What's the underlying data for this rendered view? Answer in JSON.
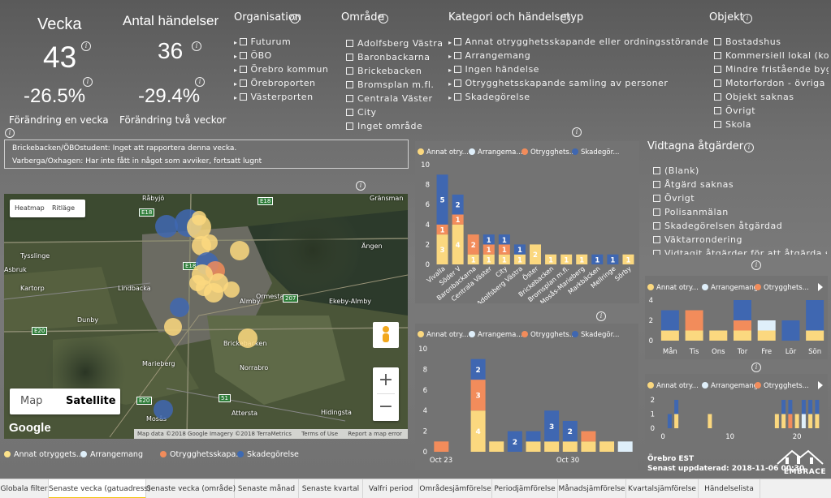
{
  "kpis": {
    "week_title": "Vecka",
    "week_value": "43",
    "events_title": "Antal händelser",
    "events_value": "36",
    "change_one": "-26.5%",
    "change_one_label": "Förändring en vecka",
    "change_two": "-29.4%",
    "change_two_label": "Förändring två veckor"
  },
  "slicers": {
    "org": {
      "title": "Organisation",
      "items": [
        "Futurum",
        "ÖBO",
        "Örebro kommun",
        "Örebroporten",
        "Västerporten"
      ]
    },
    "area": {
      "title": "Område",
      "items": [
        "Adolfsberg Västra",
        "Baronbackarna",
        "Brickebacken",
        "Bromsplan m.fl.",
        "Centrala Väster",
        "City",
        "Inget område"
      ]
    },
    "category": {
      "title": "Kategori och händelsetyp",
      "items": [
        "Annat otrygghetsskapande eller ordningsstörande",
        "Arrangemang",
        "Ingen händelse",
        "Otrygghetsskapande samling av personer",
        "Skadegörelse"
      ]
    },
    "object": {
      "title": "Objekt",
      "items": [
        "Bostadshus",
        "Kommersiell lokal (konto",
        "Mindre fristående byggr",
        "Motorfordon - övriga",
        "Objekt saknas",
        "Övrigt",
        "Skola"
      ]
    },
    "actions": {
      "title": "Vidtagna åtgärder",
      "items": [
        "(Blank)",
        "Åtgärd saknas",
        "Övrigt",
        "Polisanmälan",
        "Skadegörelsen åtgärdad",
        "Väktarrondering",
        "Vidtagit åtgärder för att åtgärda skadi"
      ]
    }
  },
  "notes": [
    "Brickebacken/ÖBOstudent: Inget att rapportera denna vecka.",
    "Varberga/Oxhagen: Har inte fått in något som avviker, fortsatt lugnt"
  ],
  "map": {
    "heatmap": "Heatmap",
    "ritlage": "Ritläge",
    "map_btn": "Map",
    "satellite_btn": "Satellite",
    "zoom_in": "+",
    "zoom_out": "−",
    "google": "Google",
    "footer": "Map data ©2018 Google Imagery ©2018 TerraMetrics",
    "terms": "Terms of Use",
    "report": "Report a map error",
    "places": [
      "Tysslinge",
      "Lindbacka",
      "Kartorp",
      "Dunby",
      "Marieberg",
      "Norrabro",
      "Brickebacken",
      "Ekeby-Almby",
      "Ormesta",
      "Almby",
      "Mosås",
      "Attersta",
      "Hidingsta",
      "Gränsman",
      "Råbyjö",
      "Asbruk",
      "Ängen"
    ],
    "roads": [
      "E18",
      "E20",
      "E18",
      "207",
      "51",
      "E20",
      "E18"
    ]
  },
  "legend": {
    "items": [
      "Annat otryggets...",
      "Arrangemang",
      "Otrygghetsskapa...",
      "Skadegörelse"
    ],
    "colors": [
      "#fde38b",
      "#dfeffa",
      "#f28c5b",
      "#3d6ab3"
    ]
  },
  "colors": {
    "annat": "#fbd87f",
    "arrangemang": "#dfeffa",
    "otrygghet": "#f28c5b",
    "skadegorelse": "#3f67b1"
  },
  "chart_legend": [
    "Annat otry...",
    "Arrangema...",
    "Otrygghets...",
    "Skadegör..."
  ],
  "chart_data": [
    {
      "type": "bar",
      "stacked": true,
      "name": "area_chart",
      "categories": [
        "Vivalla",
        "Söder V",
        "Baronbackarna",
        "Centrala Väster",
        "City",
        "Adolfsberg Västra",
        "Öster",
        "Brickebacken",
        "Bromsplan m.fl.",
        "Mosås-Marieberg",
        "Markbäcken",
        "Mellringe",
        "Sörbyängen"
      ],
      "ylim": [
        0,
        10
      ],
      "yticks": [
        0,
        2,
        4,
        6,
        8,
        10
      ],
      "series": [
        {
          "name": "Annat otry...",
          "values": [
            3,
            4,
            1,
            1,
            1,
            1,
            2,
            1,
            1,
            1,
            0,
            0,
            1
          ]
        },
        {
          "name": "Arrangema...",
          "values": [
            0,
            0,
            0,
            0,
            0,
            0,
            0,
            0,
            0,
            0,
            0,
            0,
            0
          ]
        },
        {
          "name": "Otrygghets...",
          "values": [
            1,
            1,
            2,
            1,
            1,
            0,
            0,
            0,
            0,
            0,
            0,
            0,
            0
          ]
        },
        {
          "name": "Skadegör...",
          "values": [
            5,
            2,
            0,
            1,
            1,
            1,
            0,
            0,
            0,
            0,
            1,
            1,
            0
          ]
        }
      ],
      "segment_labels": [
        [
          "3",
          "1",
          "5"
        ],
        [
          "4",
          "1",
          "2"
        ],
        [
          "1",
          "2",
          ""
        ],
        [
          "1",
          "1",
          "1"
        ],
        [
          "1",
          "1",
          "1"
        ],
        [
          "1",
          "",
          "1"
        ],
        [
          "2",
          "",
          ""
        ],
        [
          "1",
          "",
          ""
        ],
        [
          "1",
          "",
          ""
        ],
        [
          "1",
          "",
          ""
        ],
        [
          "",
          "",
          "1"
        ],
        [
          "",
          "",
          "1"
        ],
        [
          "1",
          "",
          ""
        ]
      ],
      "xlabels": [
        "Vivalla",
        "Söder V",
        "Baronbackarna",
        "Centrala Väster",
        "City",
        "Adolfsberg Västra",
        "Öster",
        "Brickebacken",
        "Bromsplan m.fl.",
        "Mosås-Marieberg",
        "Markbäcken",
        "Mellringe",
        "Sörby"
      ]
    },
    {
      "type": "bar",
      "stacked": true,
      "name": "weekday_chart",
      "categories": [
        "Mån",
        "Tis",
        "Ons",
        "Tor",
        "Fre",
        "Lör",
        "Sön"
      ],
      "ylim": [
        0,
        4
      ],
      "yticks": [
        0,
        2,
        4
      ],
      "series": [
        {
          "name": "Annat otry...",
          "values": [
            1,
            1,
            1,
            1,
            1,
            0,
            1
          ]
        },
        {
          "name": "Arrangemang",
          "values": [
            0,
            0,
            0,
            0,
            1,
            0,
            0
          ]
        },
        {
          "name": "Otrygghets...",
          "values": [
            0,
            2,
            0,
            1,
            0,
            0,
            0
          ]
        },
        {
          "name": "Skadegörelse",
          "values": [
            2,
            0,
            0,
            2,
            0,
            2,
            3
          ]
        }
      ]
    },
    {
      "type": "bar",
      "stacked": true,
      "name": "daily_chart",
      "categories": [
        "Oct 22",
        "Oct 23",
        "Oct 24",
        "Oct 25",
        "Oct 26",
        "Oct 27",
        "Oct 28",
        "Oct 29",
        "Oct 30",
        "Oct 31",
        "Nov 1"
      ],
      "xtick_labels": [
        "Oct 23",
        "Oct 30"
      ],
      "ylim": [
        0,
        10
      ],
      "yticks": [
        0,
        2,
        4,
        6,
        8,
        10
      ],
      "series": [
        {
          "name": "Annat otry...",
          "values": [
            0,
            0,
            4,
            1,
            0,
            1,
            1,
            1,
            1,
            1,
            0
          ]
        },
        {
          "name": "Arrangema...",
          "values": [
            0,
            0,
            0,
            0,
            0,
            0,
            0,
            0,
            0,
            0,
            1
          ]
        },
        {
          "name": "Otrygghets...",
          "values": [
            1,
            0,
            3,
            0,
            0,
            0,
            0,
            0,
            1,
            0,
            0
          ]
        },
        {
          "name": "Skadegör...",
          "values": [
            0,
            0,
            2,
            0,
            2,
            1,
            3,
            2,
            0,
            0,
            0
          ]
        }
      ],
      "segment_labels": [
        [
          "",
          "",
          ""
        ],
        [
          "",
          "",
          ""
        ],
        [
          "4",
          "3",
          "2"
        ],
        [
          "",
          "",
          ""
        ],
        [
          "",
          "",
          "2"
        ],
        [
          "",
          "",
          ""
        ],
        [
          "",
          "",
          "3"
        ],
        [
          "",
          "",
          "2"
        ],
        [
          "",
          "",
          ""
        ],
        [
          "",
          "",
          ""
        ],
        [
          "",
          "",
          ""
        ]
      ]
    },
    {
      "type": "bar",
      "stacked": true,
      "name": "hour_chart",
      "ylim": [
        0,
        2
      ],
      "yticks": [
        0,
        1,
        2
      ],
      "xtick_labels": [
        "0",
        "10",
        "20"
      ],
      "series": [
        {
          "name": "Annat otry...",
          "values": [
            0,
            0,
            1,
            0,
            0,
            0,
            0,
            1,
            0,
            0,
            0,
            0,
            0,
            0,
            0,
            0,
            0,
            1,
            1,
            0,
            1,
            0,
            1,
            1
          ]
        },
        {
          "name": "Arrangemang",
          "values": [
            0,
            0,
            0,
            0,
            0,
            0,
            0,
            0,
            0,
            0,
            0,
            0,
            0,
            0,
            0,
            0,
            0,
            0,
            0,
            0,
            0,
            1,
            0,
            0
          ]
        },
        {
          "name": "Otrygghets...",
          "values": [
            0,
            0,
            0,
            0,
            0,
            0,
            0,
            0,
            0,
            0,
            0,
            0,
            0,
            0,
            0,
            0,
            0,
            0,
            0,
            1,
            0,
            0,
            0,
            0
          ]
        },
        {
          "name": "Skadegörelse",
          "values": [
            0,
            1,
            1,
            0,
            0,
            0,
            0,
            0,
            0,
            0,
            0,
            0,
            0,
            0,
            0,
            0,
            0,
            0,
            1,
            1,
            0,
            1,
            1,
            1
          ]
        }
      ]
    }
  ],
  "footer": {
    "location": "Örebro EST",
    "updated": "Senast uppdaterad: 2018-11-06 00:30",
    "logo": "EMBRACE"
  },
  "tabs": [
    "Globala filter",
    "Senaste vecka (gatuadress)",
    "Senaste vecka (område)",
    "Senaste månad",
    "Senaste kvartal",
    "Valfri period",
    "Områdesjämförelse",
    "Periodjämförelse",
    "Månadsjämförelse",
    "Kvartalsjämförelse",
    "Händelselista"
  ]
}
